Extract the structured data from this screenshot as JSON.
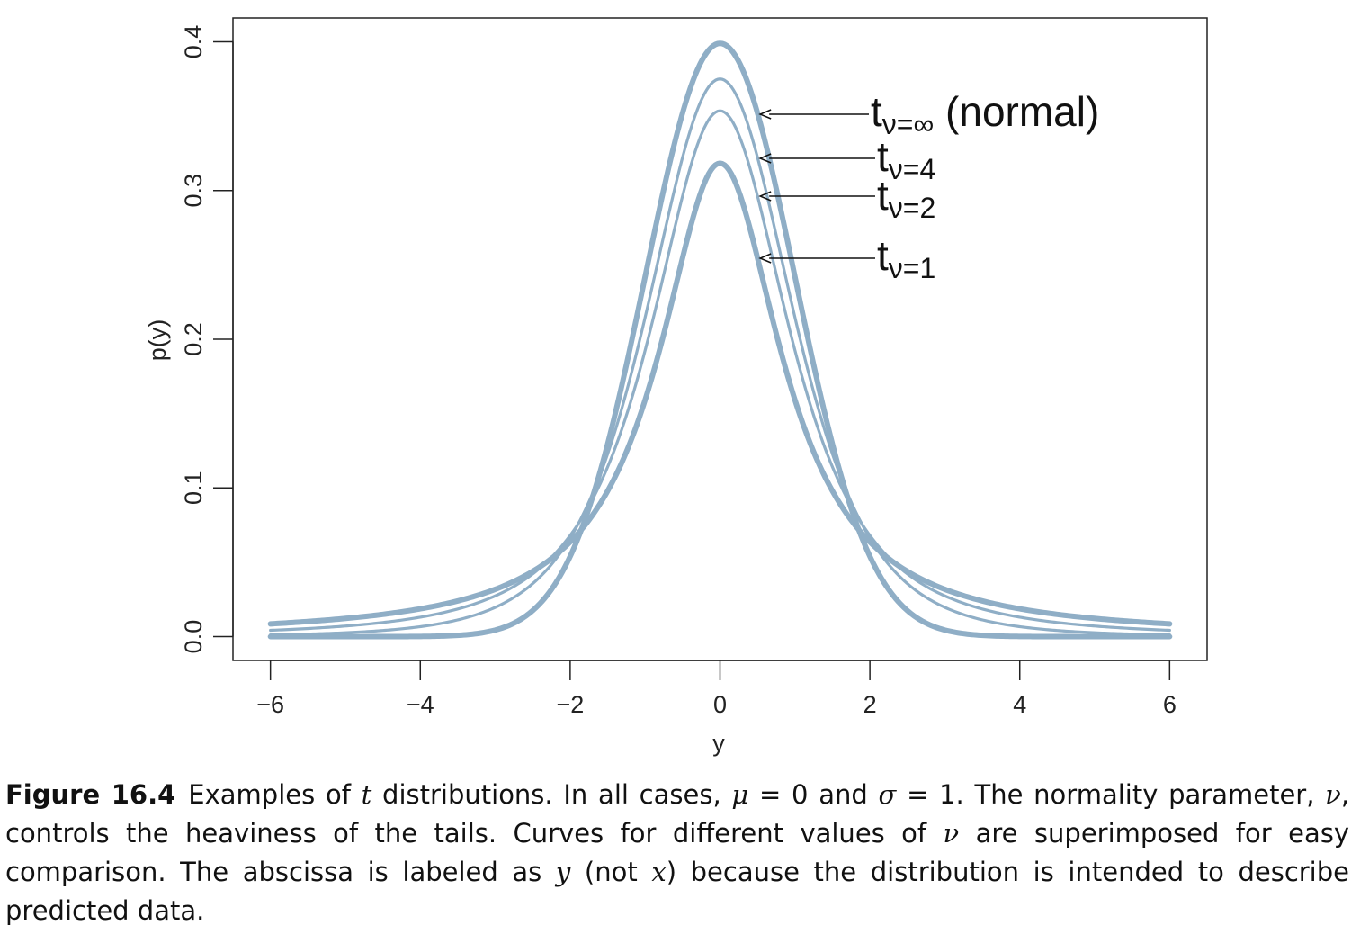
{
  "chart_data": {
    "type": "line",
    "xlabel": "y",
    "ylabel": "p(y)",
    "xlim": [
      -6.5,
      6.5
    ],
    "ylim": [
      -0.016,
      0.416
    ],
    "x_ticks": [
      -6,
      -4,
      -2,
      0,
      2,
      4,
      6
    ],
    "x_tick_labels": [
      "−6",
      "−4",
      "−2",
      "0",
      "2",
      "4",
      "6"
    ],
    "y_ticks": [
      0.0,
      0.1,
      0.2,
      0.3,
      0.4
    ],
    "y_tick_labels": [
      "0.0",
      "0.1",
      "0.2",
      "0.3",
      "0.4"
    ],
    "grid": false,
    "line_color": "#8FAEC6",
    "series": [
      {
        "name": "tν=∞ (normal)",
        "nu": "inf",
        "x": [
          -6,
          -5,
          -4,
          -3,
          -2.5,
          -2,
          -1.5,
          -1,
          -0.5,
          0,
          0.5,
          1,
          1.5,
          2,
          2.5,
          3,
          4,
          5,
          6
        ],
        "values": [
          0.0,
          0.0,
          0.0001,
          0.0044,
          0.0175,
          0.054,
          0.1295,
          0.242,
          0.3521,
          0.3989,
          0.3521,
          0.242,
          0.1295,
          0.054,
          0.0175,
          0.0044,
          0.0001,
          0.0,
          0.0
        ]
      },
      {
        "name": "tν=4",
        "nu": 4,
        "x": [
          -6,
          -5,
          -4,
          -3,
          -2.5,
          -2,
          -1.5,
          -1,
          -0.5,
          0,
          0.5,
          1,
          1.5,
          2,
          2.5,
          3,
          4,
          5,
          6
        ],
        "values": [
          0.0014,
          0.0042,
          0.0067,
          0.0197,
          0.036,
          0.0663,
          0.1169,
          0.2147,
          0.3222,
          0.375,
          0.3222,
          0.2147,
          0.1169,
          0.0663,
          0.036,
          0.0197,
          0.0067,
          0.0042,
          0.0014
        ]
      },
      {
        "name": "tν=2",
        "nu": 2,
        "x": [
          -6,
          -5,
          -4,
          -3,
          -2.5,
          -2,
          -1.5,
          -1,
          -0.5,
          0,
          0.5,
          1,
          1.5,
          2,
          2.5,
          3,
          4,
          5,
          6
        ],
        "values": [
          0.0041,
          0.0071,
          0.0131,
          0.0274,
          0.0407,
          0.068,
          0.1144,
          0.1925,
          0.2962,
          0.3536,
          0.2962,
          0.1925,
          0.1144,
          0.068,
          0.0407,
          0.0274,
          0.0131,
          0.0071,
          0.0041
        ]
      },
      {
        "name": "tν=1",
        "nu": 1,
        "x": [
          -6,
          -5,
          -4,
          -3,
          -2.5,
          -2,
          -1.5,
          -1,
          -0.5,
          0,
          0.5,
          1,
          1.5,
          2,
          2.5,
          3,
          4,
          5,
          6
        ],
        "values": [
          0.0086,
          0.0122,
          0.0187,
          0.0318,
          0.0439,
          0.0637,
          0.0979,
          0.1592,
          0.2546,
          0.3183,
          0.2546,
          0.1592,
          0.0979,
          0.0637,
          0.0439,
          0.0318,
          0.0187,
          0.0122,
          0.0086
        ]
      }
    ],
    "annotations": [
      {
        "label": "t",
        "sub": "ν=∞",
        "suffix": " (normal)",
        "target_x": 0.5,
        "target_y": 0.352
      },
      {
        "label": "t",
        "sub": "ν=4",
        "suffix": "",
        "target_x": 0.5,
        "target_y": 0.322
      },
      {
        "label": "t",
        "sub": "ν=2",
        "suffix": "",
        "target_x": 0.5,
        "target_y": 0.296
      },
      {
        "label": "t",
        "sub": "ν=1",
        "suffix": "",
        "target_x": 0.5,
        "target_y": 0.255
      }
    ]
  },
  "caption": {
    "figure_label": "Figure 16.4",
    "p1": "Examples of ",
    "t": "t",
    "p2": " distributions. In all cases, ",
    "mu": "μ",
    "p3": " = 0 and ",
    "sigma": "σ",
    "p4": " = 1. The normality parameter, ",
    "nu1": "ν",
    "p5": ", controls the heaviness of the tails. Curves for different values of ",
    "nu2": "ν",
    "p6": " are superimposed for easy comparison. The abscissa is labeled as ",
    "y": "y",
    "p7": " (not ",
    "x": "x",
    "p8": ") because the distribution is intended to describe predicted data."
  }
}
